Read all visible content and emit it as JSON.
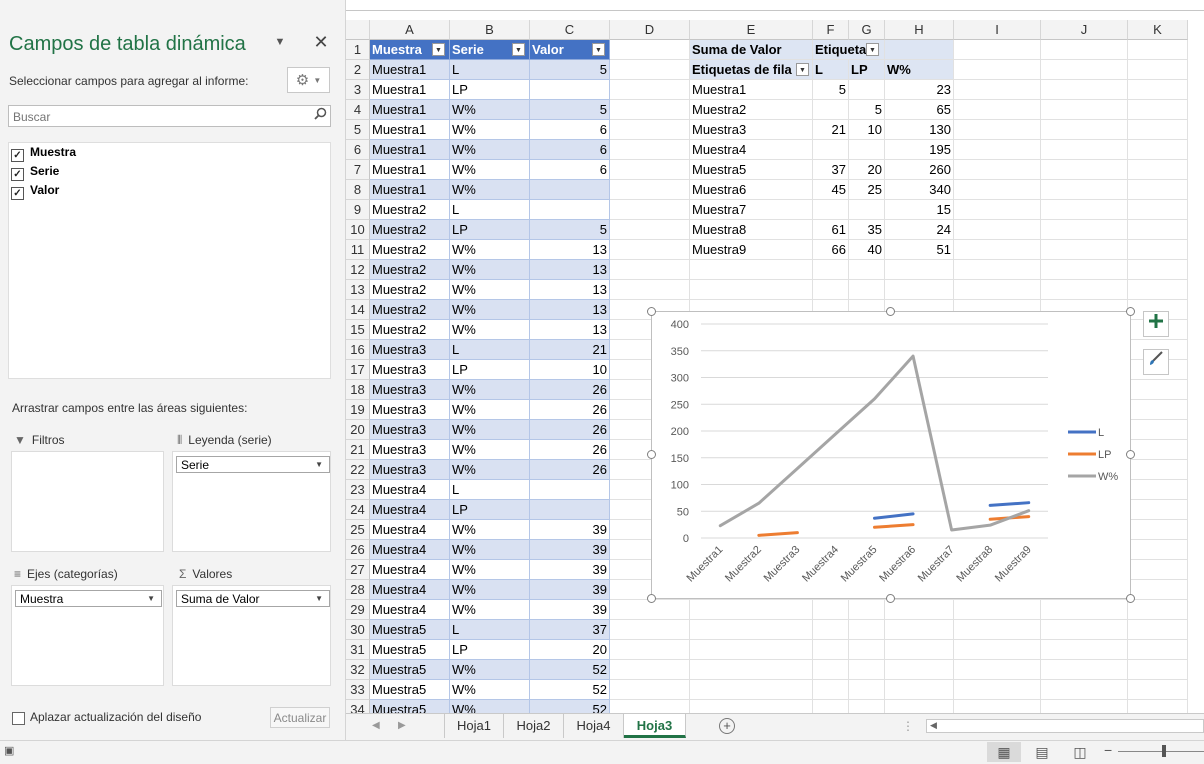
{
  "pivot_pane": {
    "title": "Campos de tabla dinámica",
    "subtitle": "Seleccionar campos para agregar al informe:",
    "search_placeholder": "Buscar",
    "fields": [
      {
        "label": "Muestra",
        "checked": true
      },
      {
        "label": "Serie",
        "checked": true
      },
      {
        "label": "Valor",
        "checked": true
      }
    ],
    "drag_label": "Arrastrar campos entre las áreas siguientes:",
    "areas": {
      "filters": {
        "label": "Filtros",
        "items": []
      },
      "legend": {
        "label": "Leyenda (serie)",
        "items": [
          "Serie"
        ]
      },
      "axes": {
        "label": "Ejes (categorías)",
        "items": [
          "Muestra"
        ]
      },
      "values": {
        "label": "Valores",
        "items": [
          "Suma de Valor"
        ]
      }
    },
    "defer_label": "Aplazar actualización del diseño",
    "defer_checked": false,
    "update_label": "Actualizar"
  },
  "sheet": {
    "columns": [
      "A",
      "B",
      "C",
      "D",
      "E",
      "F",
      "G",
      "H",
      "I",
      "J",
      "K"
    ],
    "rows": [
      "1",
      "2",
      "3",
      "4",
      "5",
      "6",
      "7",
      "8",
      "9",
      "10",
      "11",
      "12",
      "13",
      "14",
      "15",
      "16",
      "17",
      "18",
      "19",
      "20",
      "21",
      "22",
      "23",
      "24",
      "25",
      "26",
      "27",
      "28",
      "29",
      "30",
      "31",
      "32",
      "33",
      "34"
    ],
    "table_headers": [
      "Muestra",
      "Serie",
      "Valor"
    ],
    "table_rows": [
      [
        "Muestra1",
        "L",
        "5"
      ],
      [
        "Muestra1",
        "LP",
        ""
      ],
      [
        "Muestra1",
        "W%",
        "5"
      ],
      [
        "Muestra1",
        "W%",
        "6"
      ],
      [
        "Muestra1",
        "W%",
        "6"
      ],
      [
        "Muestra1",
        "W%",
        "6"
      ],
      [
        "Muestra1",
        "W%",
        ""
      ],
      [
        "Muestra2",
        "L",
        ""
      ],
      [
        "Muestra2",
        "LP",
        "5"
      ],
      [
        "Muestra2",
        "W%",
        "13"
      ],
      [
        "Muestra2",
        "W%",
        "13"
      ],
      [
        "Muestra2",
        "W%",
        "13"
      ],
      [
        "Muestra2",
        "W%",
        "13"
      ],
      [
        "Muestra2",
        "W%",
        "13"
      ],
      [
        "Muestra3",
        "L",
        "21"
      ],
      [
        "Muestra3",
        "LP",
        "10"
      ],
      [
        "Muestra3",
        "W%",
        "26"
      ],
      [
        "Muestra3",
        "W%",
        "26"
      ],
      [
        "Muestra3",
        "W%",
        "26"
      ],
      [
        "Muestra3",
        "W%",
        "26"
      ],
      [
        "Muestra3",
        "W%",
        "26"
      ],
      [
        "Muestra4",
        "L",
        ""
      ],
      [
        "Muestra4",
        "LP",
        ""
      ],
      [
        "Muestra4",
        "W%",
        "39"
      ],
      [
        "Muestra4",
        "W%",
        "39"
      ],
      [
        "Muestra4",
        "W%",
        "39"
      ],
      [
        "Muestra4",
        "W%",
        "39"
      ],
      [
        "Muestra4",
        "W%",
        "39"
      ],
      [
        "Muestra5",
        "L",
        "37"
      ],
      [
        "Muestra5",
        "LP",
        "20"
      ],
      [
        "Muestra5",
        "W%",
        "52"
      ],
      [
        "Muestra5",
        "W%",
        "52"
      ],
      [
        "Muestra5",
        "W%",
        "52"
      ]
    ],
    "pivot": {
      "sum_label": "Suma de Valor",
      "col_labels_caption": "Etiqueta",
      "row_labels_caption": "Etiquetas de fila",
      "col_keys": [
        "L",
        "LP",
        "W%"
      ],
      "rows": [
        [
          "Muestra1",
          "5",
          "",
          "23"
        ],
        [
          "Muestra2",
          "",
          "5",
          "65"
        ],
        [
          "Muestra3",
          "21",
          "10",
          "130"
        ],
        [
          "Muestra4",
          "",
          "",
          "195"
        ],
        [
          "Muestra5",
          "37",
          "20",
          "260"
        ],
        [
          "Muestra6",
          "45",
          "25",
          "340"
        ],
        [
          "Muestra7",
          "",
          "",
          "15"
        ],
        [
          "Muestra8",
          "61",
          "35",
          "24"
        ],
        [
          "Muestra9",
          "66",
          "40",
          "51"
        ]
      ]
    }
  },
  "chart_data": {
    "type": "line",
    "categories": [
      "Muestra1",
      "Muestra2",
      "Muestra3",
      "Muestra4",
      "Muestra5",
      "Muestra6",
      "Muestra7",
      "Muestra8",
      "Muestra9"
    ],
    "series": [
      {
        "name": "L",
        "color": "#4472c4",
        "values": [
          5,
          null,
          21,
          null,
          37,
          45,
          null,
          61,
          66
        ]
      },
      {
        "name": "LP",
        "color": "#ed7d31",
        "values": [
          null,
          5,
          10,
          null,
          20,
          25,
          null,
          35,
          40
        ]
      },
      {
        "name": "W%",
        "color": "#a5a5a5",
        "values": [
          23,
          65,
          130,
          195,
          260,
          340,
          15,
          24,
          51
        ]
      }
    ],
    "ylim": [
      0,
      400
    ],
    "yticks": [
      0,
      50,
      100,
      150,
      200,
      250,
      300,
      350,
      400
    ],
    "grid": true,
    "legend": "right"
  },
  "sheet_tabs": [
    {
      "label": "Hoja1",
      "active": false
    },
    {
      "label": "Hoja2",
      "active": false
    },
    {
      "label": "Hoja4",
      "active": false
    },
    {
      "label": "Hoja3",
      "active": true
    }
  ],
  "icons": {
    "close": "close-icon",
    "gear": "gear-icon",
    "search": "search-icon",
    "chart_elements": "plus-icon",
    "chart_styles": "brush-icon",
    "filter": "filter-icon",
    "legend": "columns-icon",
    "axes": "rows-icon",
    "values": "sigma-icon"
  },
  "colors": {
    "accent": "#217346",
    "table_header": "#4472c4",
    "table_band": "#d9e1f2"
  }
}
